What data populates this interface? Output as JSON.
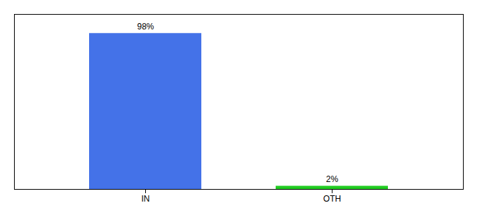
{
  "chart_data": {
    "type": "bar",
    "categories": [
      "IN",
      "OTH"
    ],
    "values": [
      98,
      2
    ],
    "colors": [
      "#4472e8",
      "#22cc22"
    ],
    "value_labels": [
      "98%",
      "2%"
    ],
    "data_labels": true,
    "ylim": [
      0,
      110
    ],
    "tick_labels": "x"
  }
}
